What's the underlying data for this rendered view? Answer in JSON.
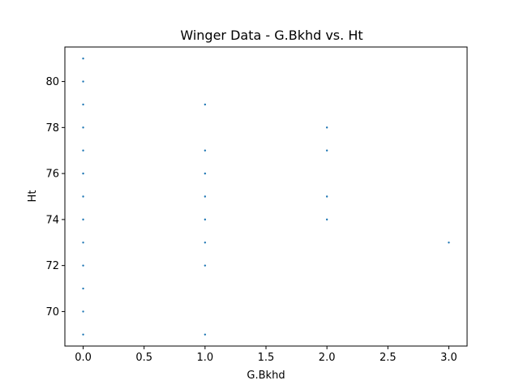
{
  "chart_data": {
    "type": "scatter",
    "title": "Winger Data - G.Bkhd vs. Ht",
    "xlabel": "G.Bkhd",
    "ylabel": "Ht",
    "xlim": [
      -0.15,
      3.15
    ],
    "ylim": [
      68.5,
      81.5
    ],
    "x_ticks": [
      0.0,
      0.5,
      1.0,
      1.5,
      2.0,
      2.5,
      3.0
    ],
    "x_tick_labels": [
      "0.0",
      "0.5",
      "1.0",
      "1.5",
      "2.0",
      "2.5",
      "3.0"
    ],
    "y_ticks": [
      70,
      72,
      74,
      76,
      78,
      80
    ],
    "y_tick_labels": [
      "70",
      "72",
      "74",
      "76",
      "78",
      "80"
    ],
    "grid": false,
    "marker_color": "#1f77b4",
    "points": [
      {
        "x": 0,
        "y": 81
      },
      {
        "x": 0,
        "y": 80
      },
      {
        "x": 0,
        "y": 79
      },
      {
        "x": 0,
        "y": 78
      },
      {
        "x": 0,
        "y": 77
      },
      {
        "x": 0,
        "y": 76
      },
      {
        "x": 0,
        "y": 75
      },
      {
        "x": 0,
        "y": 74
      },
      {
        "x": 0,
        "y": 73
      },
      {
        "x": 0,
        "y": 72
      },
      {
        "x": 0,
        "y": 71
      },
      {
        "x": 0,
        "y": 70
      },
      {
        "x": 0,
        "y": 69
      },
      {
        "x": 1,
        "y": 79
      },
      {
        "x": 1,
        "y": 77
      },
      {
        "x": 1,
        "y": 76
      },
      {
        "x": 1,
        "y": 75
      },
      {
        "x": 1,
        "y": 74
      },
      {
        "x": 1,
        "y": 73
      },
      {
        "x": 1,
        "y": 72
      },
      {
        "x": 1,
        "y": 69
      },
      {
        "x": 2,
        "y": 78
      },
      {
        "x": 2,
        "y": 77
      },
      {
        "x": 2,
        "y": 75
      },
      {
        "x": 2,
        "y": 74
      },
      {
        "x": 3,
        "y": 73
      }
    ]
  }
}
